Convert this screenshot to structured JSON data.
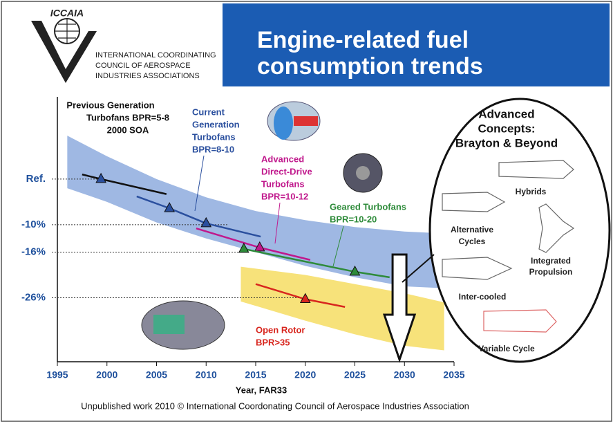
{
  "header": {
    "logo": "ICCAIA",
    "organization": [
      "INTERNATIONAL COORDINATING",
      "COUNCIL OF AEROSPACE",
      "INDUSTRIES ASSOCIATIONS"
    ],
    "title": [
      "Engine-related fuel",
      "consumption trends"
    ]
  },
  "chart_data": {
    "type": "line",
    "x_label": "Year, FAR33",
    "xlim": [
      1995,
      2035
    ],
    "xticks": [
      1995,
      2000,
      2005,
      2010,
      2015,
      2020,
      2025,
      2030,
      2035
    ],
    "ylim": [
      -40,
      18
    ],
    "yticks": [
      {
        "value": 0,
        "label": "Ref."
      },
      {
        "value": -10,
        "label": "-10%"
      },
      {
        "value": -16,
        "label": "-16%"
      },
      {
        "value": -26,
        "label": "-26%"
      }
    ],
    "bands": [
      {
        "color": "#9fb8e3",
        "x": [
          1996,
          2000,
          2005,
          2010,
          2015,
          2020,
          2025,
          2030,
          2035
        ],
        "upper": [
          9.5,
          5,
          0,
          -4,
          -7,
          -9,
          -10.5,
          -11.5,
          -12
        ],
        "lower": [
          -2,
          -5,
          -9.5,
          -13,
          -16,
          -19,
          -21.5,
          -23.5,
          -24
        ]
      },
      {
        "color": "#f7e27a",
        "x": [
          2013.5,
          2020,
          2025,
          2030,
          2034
        ],
        "upper": [
          -19.2,
          -21,
          -23,
          -25,
          -27
        ],
        "lower": [
          -26.8,
          -31,
          -34,
          -36.5,
          -37.5
        ]
      }
    ],
    "series": [
      {
        "label": [
          "Previous Generation",
          "Turbofans BPR=5-8",
          "2000 SOA"
        ],
        "color": "#111111",
        "x": [
          1997.5,
          1999.4,
          2006
        ],
        "values": [
          1,
          0,
          -3.3
        ],
        "markers": {
          "x": [
            1999.4
          ],
          "values": [
            0
          ]
        }
      },
      {
        "label": [
          "Current",
          "Generation",
          "Turbofans",
          "BPR=8-10"
        ],
        "color": "#2a4f9e",
        "x": [
          2003,
          2006.3,
          2010,
          2015.5
        ],
        "values": [
          -3.8,
          -6.4,
          -9.7,
          -12.6
        ],
        "markers": {
          "x": [
            2006.3,
            2010
          ],
          "values": [
            -6.4,
            -9.7
          ]
        }
      },
      {
        "label": [
          "Advanced",
          "Direct-Drive",
          "Turbofans",
          "BPR=10-12"
        ],
        "color": "#c0188c",
        "x": [
          2009,
          2015.4,
          2020.5
        ],
        "values": [
          -10.8,
          -15,
          -17.7
        ],
        "markers": {
          "x": [
            2015.4
          ],
          "values": [
            -15
          ]
        }
      },
      {
        "label": [
          "Geared Turbofans",
          "BPR=10-20"
        ],
        "color": "#2e8b3a",
        "x": [
          2013.8,
          2025,
          2028.5
        ],
        "values": [
          -15.3,
          -20.3,
          -21.5
        ],
        "markers": {
          "x": [
            2013.8,
            2025
          ],
          "values": [
            -15.3,
            -20.3
          ]
        }
      },
      {
        "label": [
          "Open Rotor",
          "BPR>35"
        ],
        "color": "#d8261e",
        "x": [
          2015,
          2020,
          2024
        ],
        "values": [
          -23,
          -26.3,
          -28
        ],
        "markers": {
          "x": [
            2020
          ],
          "values": [
            -26.3
          ]
        }
      }
    ],
    "concepts": {
      "heading": [
        "Advanced",
        "Concepts:",
        "Brayton & Beyond"
      ],
      "hybrids": "Hybrids",
      "alternative": [
        "Alternative",
        "Cycles"
      ],
      "integrated": [
        "Integrated",
        "Propulsion"
      ],
      "intercooled": "Inter-cooled",
      "variable": "Variable Cycle"
    },
    "footer": "Unpublished work 2010 © International Coordonating Council of Aerospace Industries Association"
  }
}
